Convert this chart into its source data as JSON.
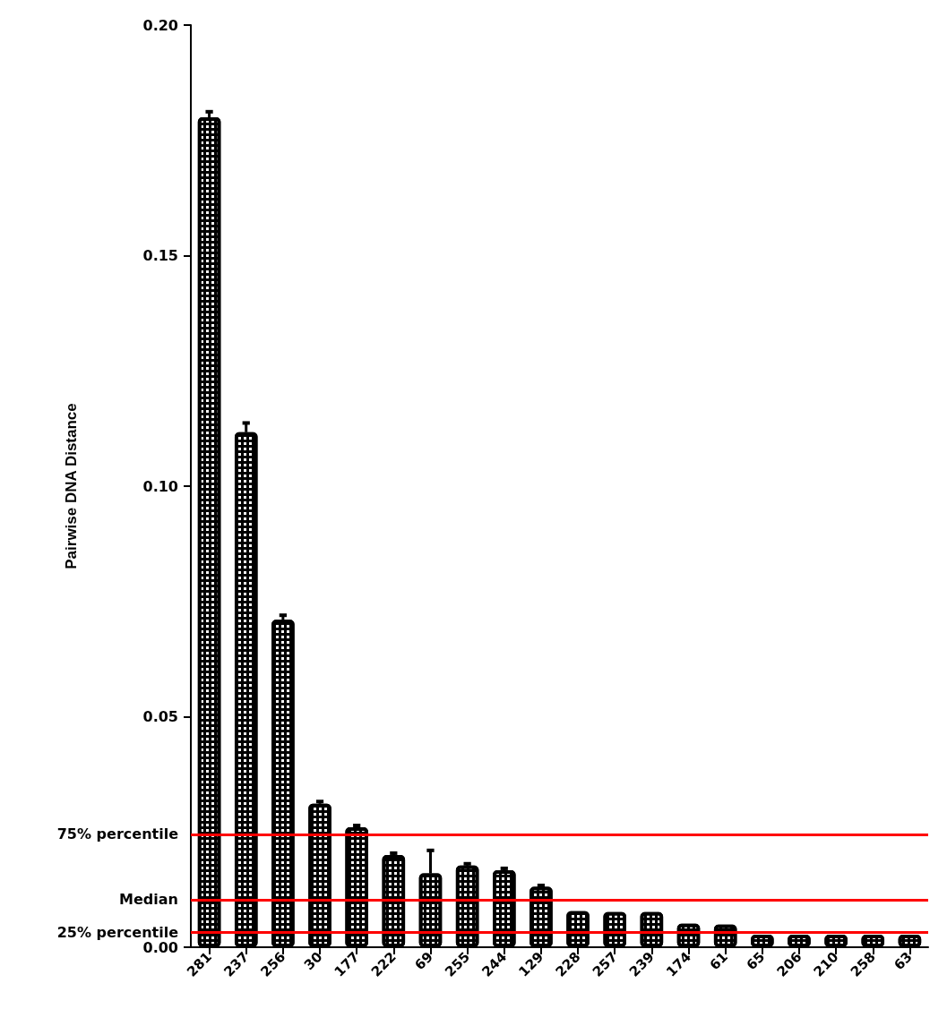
{
  "chart_data": {
    "type": "bar",
    "ylabel": "Pairwise DNA Distance",
    "categories": [
      "281",
      "237",
      "256",
      "30",
      "177",
      "222",
      "69",
      "255",
      "244",
      "129",
      "228",
      "257",
      "239",
      "174",
      "61",
      "65",
      "206",
      "210",
      "258",
      "63"
    ],
    "values": [
      0.18,
      0.1117,
      0.071,
      0.0311,
      0.026,
      0.02,
      0.016,
      0.0177,
      0.0167,
      0.0131,
      0.0078,
      0.0076,
      0.0076,
      0.0051,
      0.0049,
      0.0027,
      0.0027,
      0.0027,
      0.0027,
      0.0027
    ],
    "errors": [
      [
        0.18,
        0.1812
      ],
      [
        0.1117,
        0.1137
      ],
      [
        0.071,
        0.072
      ],
      [
        0.0311,
        0.0316
      ],
      [
        0.026,
        0.0264
      ],
      [
        0.02,
        0.0204
      ],
      [
        0.016,
        0.021
      ],
      [
        0.0177,
        0.0181
      ],
      [
        0.0167,
        0.0171
      ],
      [
        0.0131,
        0.0134
      ],
      null,
      null,
      null,
      null,
      null,
      null,
      null,
      null,
      null,
      null
    ],
    "color": "#000000",
    "ylim": [
      0,
      0.2
    ],
    "yticks": [
      {
        "value": 0,
        "label": "0.00"
      },
      {
        "value": 0.05,
        "label": "0.05"
      },
      {
        "value": 0.1,
        "label": "0.10"
      },
      {
        "value": 0.15,
        "label": "0.15"
      },
      {
        "value": 0.2,
        "label": "0.20"
      }
    ],
    "grid": false,
    "ref_lines": [
      {
        "axis": "y",
        "value": 0.0245,
        "label": "75% percentile",
        "color": "#ff0000"
      },
      {
        "axis": "y",
        "value": 0.0103,
        "label": "Median",
        "color": "#ff0000"
      },
      {
        "axis": "y",
        "value": 0.0032,
        "label": "25% percentile",
        "color": "#ff0000"
      }
    ]
  }
}
